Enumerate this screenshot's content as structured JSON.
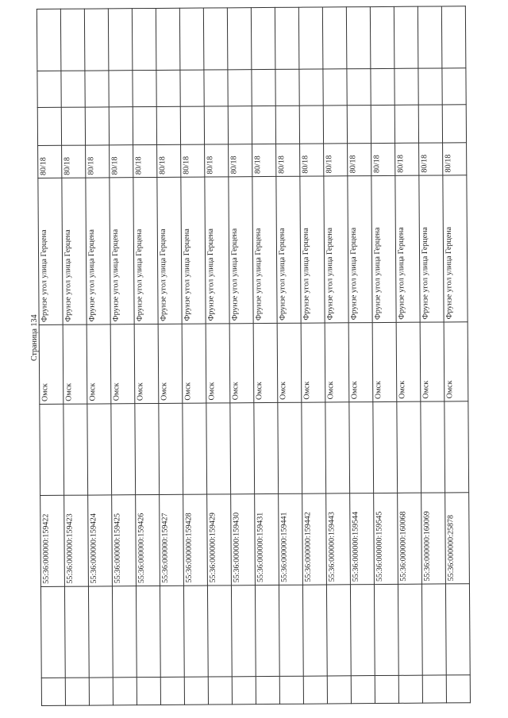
{
  "page_label": "Страница 134",
  "rows": [
    {
      "cadastral": "55:36:000000:159422",
      "city": "Омск",
      "address": "Фрунзе угол улица Герцена",
      "number": "80/18"
    },
    {
      "cadastral": "55:36:000000:159423",
      "city": "Омск",
      "address": "Фрунзе угол улица Герцена",
      "number": "80/18"
    },
    {
      "cadastral": "55:36:000000:159424",
      "city": "Омск",
      "address": "Фрунзе угол улица Герцена",
      "number": "80/18"
    },
    {
      "cadastral": "55:36:000000:159425",
      "city": "Омск",
      "address": "Фрунзе угол улица Герцена",
      "number": "80/18"
    },
    {
      "cadastral": "55:36:000000:159426",
      "city": "Омск",
      "address": "Фрунзе угол улица Герцена",
      "number": "80/18"
    },
    {
      "cadastral": "55:36:000000:159427",
      "city": "Омск",
      "address": "Фрунзе угол улица Герцена",
      "number": "80/18"
    },
    {
      "cadastral": "55:36:000000:159428",
      "city": "Омск",
      "address": "Фрунзе угол улица Герцена",
      "number": "80/18"
    },
    {
      "cadastral": "55:36:000000:159429",
      "city": "Омск",
      "address": "Фрунзе угол улица Герцена",
      "number": "80/18"
    },
    {
      "cadastral": "55:36:000000:159430",
      "city": "Омск",
      "address": "Фрунзе угол улица Герцена",
      "number": "80/18"
    },
    {
      "cadastral": "55:36:000000:159431",
      "city": "Омск",
      "address": "Фрунзе угол улица Герцена",
      "number": "80/18"
    },
    {
      "cadastral": "55:36:000000:159441",
      "city": "Омск",
      "address": "Фрунзе угол улица Герцена",
      "number": "80/18"
    },
    {
      "cadastral": "55:36:000000:159442",
      "city": "Омск",
      "address": "Фрунзе угол улица Герцена",
      "number": "80/18"
    },
    {
      "cadastral": "55:36:000000:159443",
      "city": "Омск",
      "address": "Фрунзе угол улица Герцена",
      "number": "80/18"
    },
    {
      "cadastral": "55:36:000000:159544",
      "city": "Омск",
      "address": "Фрунзе угол улица Герцена",
      "number": "80/18"
    },
    {
      "cadastral": "55:36:000000:159545",
      "city": "Омск",
      "address": "Фрунзе угол улица Герцена",
      "number": "80/18"
    },
    {
      "cadastral": "55:36:000000:160068",
      "city": "Омск",
      "address": "Фрунзе угол улица Герцена",
      "number": "80/18"
    },
    {
      "cadastral": "55:36:000000:160069",
      "city": "Омск",
      "address": "Фрунзе угол улица Герцена",
      "number": "80/18"
    },
    {
      "cadastral": "55:36:000000:25878",
      "city": "Омск",
      "address": "Фрунзе угол улица Герцена",
      "number": "80/18"
    }
  ]
}
